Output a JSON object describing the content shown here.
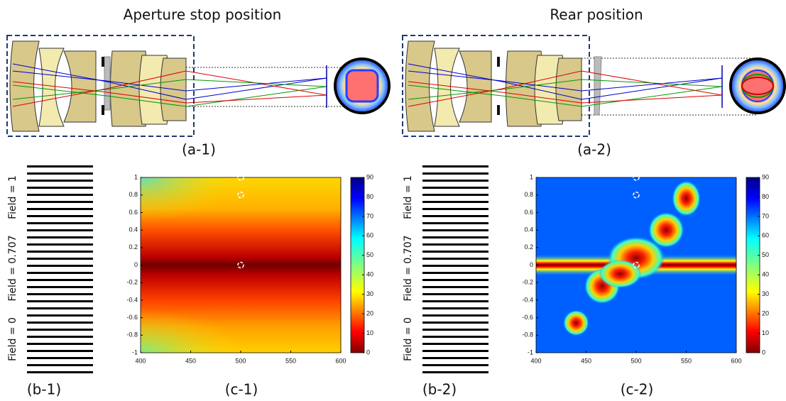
{
  "figure": {
    "columns": [
      {
        "title": "Aperture stop position",
        "lens_label": "(a-1)",
        "bars_label": "(b-1)",
        "map_label": "(c-1)"
      },
      {
        "title": "Rear position",
        "lens_label": "(a-2)",
        "bars_label": "(b-2)",
        "map_label": "(c-2)"
      }
    ],
    "field_labels": [
      "Field = 1",
      "Field = 0.707",
      "Field = 0"
    ],
    "map": {
      "xticks": [
        400,
        450,
        500,
        550,
        600
      ],
      "yticks": [
        1,
        0.8,
        0.6,
        0.4,
        0.2,
        0,
        -0.2,
        -0.4,
        -0.6,
        -0.8,
        -1
      ],
      "colorbar_ticks": [
        0,
        10,
        20,
        30,
        40,
        50,
        60,
        70,
        80,
        90
      ]
    }
  }
}
